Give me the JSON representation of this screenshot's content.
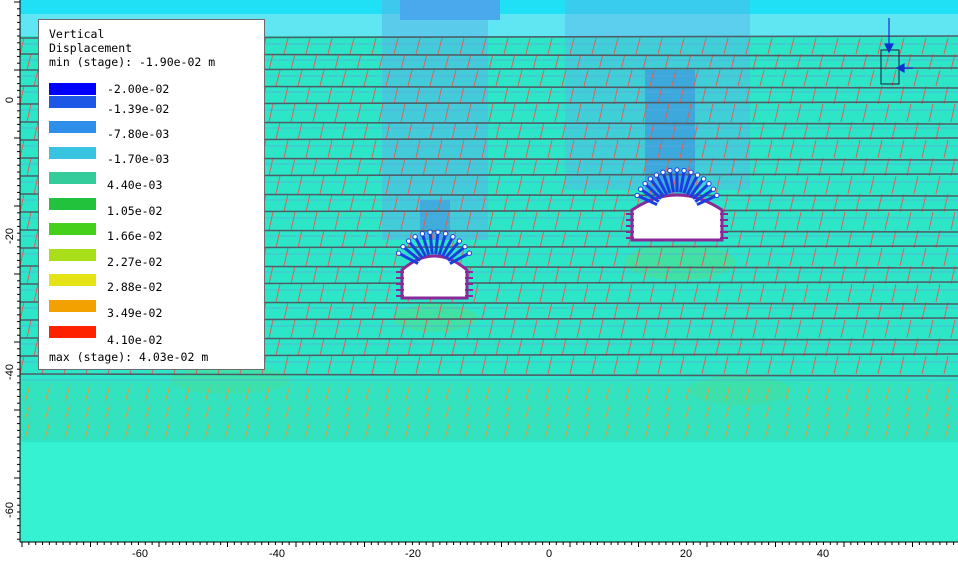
{
  "legend": {
    "title_line1": "Vertical",
    "title_line2": "Displacement",
    "min_text": "min (stage): -1.90e-02 m",
    "max_text": "max (stage): 4.03e-02 m",
    "labels": [
      "-2.00e-02",
      "-1.39e-02",
      "-7.80e-03",
      "-1.70e-03",
      "4.40e-03",
      "1.05e-02",
      "1.66e-02",
      "2.27e-02",
      "2.88e-02",
      "3.49e-02",
      "4.10e-02"
    ],
    "colors": [
      "#0000ff",
      "#1c57e6",
      "#2e8fea",
      "#38c4e0",
      "#33cc9a",
      "#22c23c",
      "#45d11b",
      "#a9de1a",
      "#e3e317",
      "#f2a100",
      "#ff2200"
    ]
  },
  "axes": {
    "x_ticks": [
      "-60",
      "-40",
      "-20",
      "0",
      "20",
      "40"
    ],
    "y_ticks": [
      "0",
      "-20",
      "-40",
      "-60"
    ]
  },
  "colors": {
    "ground": "#2de6c8",
    "deep_ground": "#34f2d2",
    "sky": "#5fe6f2",
    "mesh_red": "#e0605a",
    "joint_dark": "#4f5f6a",
    "bolt_blue": "#1840e0",
    "liner_purple": "#8a2a9a"
  }
}
